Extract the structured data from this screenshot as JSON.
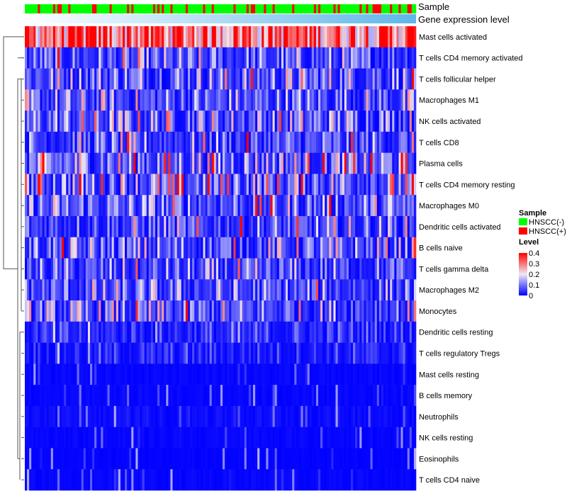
{
  "chart_data": {
    "type": "heatmap",
    "annotations": [
      "Sample",
      "Gene expression level"
    ],
    "rows": [
      "Mast cells activated",
      "T cells CD4 memory activated",
      "T cells follicular helper",
      "Macrophages M1",
      "NK cells activated",
      "T cells CD8",
      "Plasma cells",
      "T cells CD4 memory resting",
      "Macrophages M0",
      "Dendritic cells activated",
      "B cells naive",
      "T cells gamma delta",
      "Macrophages M2",
      "Monocytes",
      "Dendritic cells resting",
      "T cells regulatory  Tregs",
      "Mast cells resting",
      "B cells memory",
      "Neutrophils",
      "NK cells resting",
      "Eosinophils",
      "T cells CD4 naive"
    ],
    "row_mean_level": [
      0.3,
      0.07,
      0.1,
      0.08,
      0.1,
      0.07,
      0.12,
      0.12,
      0.09,
      0.07,
      0.08,
      0.06,
      0.07,
      0.08,
      0.04,
      0.03,
      0.01,
      0.01,
      0.02,
      0.01,
      0.005,
      0.01
    ],
    "n_columns": 180,
    "hnscc_pos_fraction": 0.25,
    "legend": {
      "sample_title": "Sample",
      "sample_items": [
        {
          "label": "HNSCC(-)",
          "color": "#00FF00"
        },
        {
          "label": "HNSCC(+)",
          "color": "#FF0000"
        }
      ],
      "level_title": "Level",
      "level_ticks": [
        "0.4",
        "0.3",
        "0.2",
        "0.1",
        "0"
      ],
      "range": [
        0,
        0.4
      ],
      "colors": {
        "low": "#0000FF",
        "mid": "#FFFFFF",
        "high": "#FF0000"
      }
    }
  }
}
